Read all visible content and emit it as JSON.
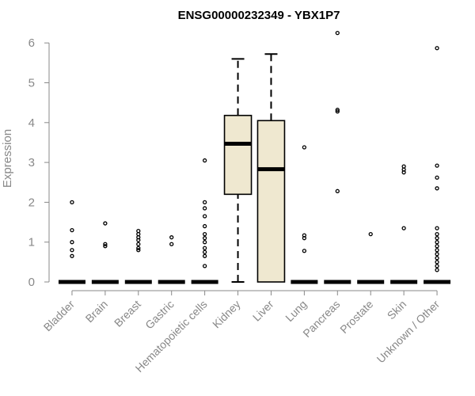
{
  "chart_data": {
    "type": "boxplot",
    "title": "ENSG00000232349 - YBX1P7",
    "ylabel": "Expression",
    "xlabel": "",
    "ylim": [
      0,
      6
    ],
    "yticks": [
      0,
      1,
      2,
      3,
      4,
      5,
      6
    ],
    "colors": {
      "box_fill": "#efe8d0",
      "box_stroke": "#000000",
      "axis": "#888888"
    },
    "categories": [
      "Bladder",
      "Brain",
      "Breast",
      "Gastric",
      "Hematopoietic cells",
      "Kidney",
      "Liver",
      "Lung",
      "Pancreas",
      "Prostate",
      "Skin",
      "Unknown / Other"
    ],
    "boxes": [
      {
        "category": "Bladder",
        "min": 0,
        "q1": 0,
        "median": 0,
        "q3": 0,
        "max": 0,
        "outliers": [
          0.65,
          0.8,
          1.0,
          1.3,
          2.0
        ]
      },
      {
        "category": "Brain",
        "min": 0,
        "q1": 0,
        "median": 0,
        "q3": 0,
        "max": 0,
        "outliers": [
          0.9,
          0.95,
          1.47
        ]
      },
      {
        "category": "Breast",
        "min": 0,
        "q1": 0,
        "median": 0,
        "q3": 0,
        "max": 0,
        "outliers": [
          0.8,
          0.85,
          0.95,
          1.05,
          1.12,
          1.2,
          1.28
        ]
      },
      {
        "category": "Gastric",
        "min": 0,
        "q1": 0,
        "median": 0,
        "q3": 0,
        "max": 0,
        "outliers": [
          0.95,
          1.12
        ]
      },
      {
        "category": "Hematopoietic cells",
        "min": 0,
        "q1": 0,
        "median": 0,
        "q3": 0,
        "max": 0,
        "outliers": [
          0.4,
          0.65,
          0.75,
          0.85,
          1.0,
          1.1,
          1.2,
          1.4,
          1.65,
          1.85,
          2.0,
          3.05
        ]
      },
      {
        "category": "Kidney",
        "min": 0,
        "q1": 2.2,
        "median": 3.47,
        "q3": 4.18,
        "max": 5.6,
        "outliers": []
      },
      {
        "category": "Liver",
        "min": 0,
        "q1": 0,
        "median": 2.83,
        "q3": 4.05,
        "max": 5.72,
        "outliers": []
      },
      {
        "category": "Lung",
        "min": 0,
        "q1": 0,
        "median": 0,
        "q3": 0,
        "max": 0,
        "outliers": [
          0.78,
          1.1,
          1.17,
          3.38
        ]
      },
      {
        "category": "Pancreas",
        "min": 0,
        "q1": 0,
        "median": 0,
        "q3": 0,
        "max": 0,
        "outliers": [
          2.28,
          4.28,
          4.32,
          6.25
        ]
      },
      {
        "category": "Prostate",
        "min": 0,
        "q1": 0,
        "median": 0,
        "q3": 0,
        "max": 0,
        "outliers": [
          1.2
        ]
      },
      {
        "category": "Skin",
        "min": 0,
        "q1": 0,
        "median": 0,
        "q3": 0,
        "max": 0,
        "outliers": [
          1.35,
          2.75,
          2.82,
          2.9
        ]
      },
      {
        "category": "Unknown / Other",
        "min": 0,
        "q1": 0,
        "median": 0,
        "q3": 0,
        "max": 0,
        "outliers": [
          0.3,
          0.4,
          0.5,
          0.6,
          0.7,
          0.8,
          0.9,
          1.0,
          1.1,
          1.2,
          1.35,
          2.35,
          2.62,
          2.92,
          5.87
        ]
      }
    ]
  }
}
